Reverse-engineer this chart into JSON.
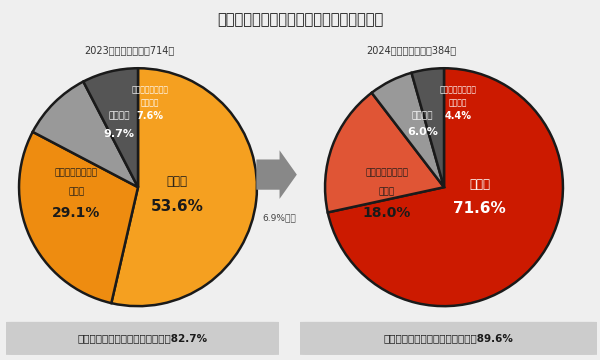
{
  "title": "賃上げとボーナスでは、どちらが嬉しいか",
  "chart2023_label": "2023年　回答者数：714人",
  "chart2024_label": "2024年　回答者数：384人",
  "arrow_label": "6.9%増加",
  "footer_left": "嬉しいのは「賃上げ派」が最多で82.7%",
  "footer_right": "嬉しいのは「賃上げ派」が最多で89.6%",
  "pie2023_values": [
    53.6,
    29.1,
    9.7,
    7.6
  ],
  "pie2023_colors": [
    "#F5A020",
    "#EE8C10",
    "#999999",
    "#555555"
  ],
  "pie2024_values": [
    71.6,
    18.0,
    6.0,
    4.4
  ],
  "pie2024_colors": [
    "#CC1A00",
    "#E05535",
    "#999999",
    "#555555"
  ],
  "bg_color": "#EFEFEF",
  "edge_color": "#1a1a1a",
  "footer_bg": "#CCCCCC"
}
